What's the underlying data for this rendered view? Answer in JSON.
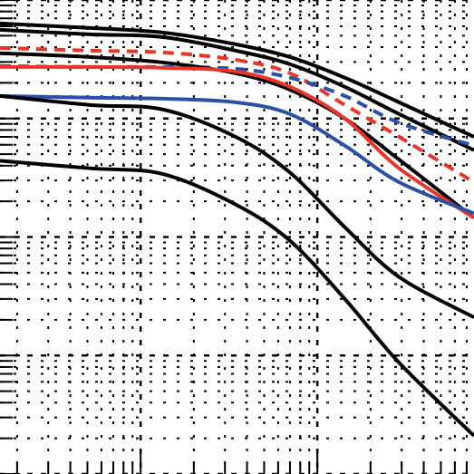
{
  "chart_data": {
    "type": "line",
    "log_x": true,
    "log_y": true,
    "grid": true,
    "xlim": [
      1.6,
      770
    ],
    "ylim": [
      0.001,
      10
    ],
    "xticks": [
      2,
      3,
      4,
      5,
      6,
      7,
      8,
      9,
      10,
      20,
      30,
      40,
      50,
      60,
      70,
      80,
      90,
      100,
      200,
      300,
      400,
      500,
      600,
      700
    ],
    "yticks": [
      0.001,
      0.002,
      0.003,
      0.004,
      0.005,
      0.006,
      0.007,
      0.008,
      0.009,
      0.01,
      0.02,
      0.03,
      0.04,
      0.05,
      0.06,
      0.07,
      0.08,
      0.09,
      0.1,
      0.2,
      0.3,
      0.4,
      0.5,
      0.6,
      0.7,
      0.8,
      0.9,
      1,
      2,
      3,
      4,
      5,
      6,
      7,
      8,
      9,
      10
    ],
    "x": [
      1.6,
      5.2,
      13.4,
      34.5,
      70,
      143,
      290,
      770
    ],
    "series": [
      {
        "color": "#000000",
        "dashed": false,
        "values": [
          6.34,
          5.8,
          5.31,
          4.23,
          3.3,
          2.21,
          1.37,
          0.7
        ]
      },
      {
        "color": "#000000",
        "dashed": false,
        "values": [
          5.6,
          5.13,
          4.86,
          3.74,
          2.87,
          1.85,
          1.09,
          0.54
        ]
      },
      {
        "color": "#e8372a",
        "dashed": true,
        "values": [
          3.94,
          3.74,
          3.61,
          3.13,
          2.41,
          1.3,
          0.7,
          0.29
        ]
      },
      {
        "color": "#2b4fa8",
        "dashed": true,
        "values": [
          2.77,
          2.72,
          2.72,
          2.63,
          2.21,
          1.55,
          0.92,
          0.59
        ]
      },
      {
        "color": "#000000",
        "dashed": false,
        "values": [
          3.55,
          3.3,
          2.97,
          2.41,
          1.75,
          1.0,
          0.45,
          0.145
        ]
      },
      {
        "color": "#e8372a",
        "dashed": false,
        "values": [
          2.72,
          2.72,
          2.68,
          2.49,
          1.85,
          1.0,
          0.38,
          0.145
        ]
      },
      {
        "color": "#2b4fa8",
        "dashed": false,
        "values": [
          1.55,
          1.5,
          1.47,
          1.37,
          1.09,
          0.59,
          0.29,
          0.158
        ]
      },
      {
        "color": "#000000",
        "dashed": false,
        "values": [
          1.55,
          1.3,
          1.19,
          0.7,
          0.35,
          0.121,
          0.046,
          0.021
        ]
      },
      {
        "color": "#000000",
        "dashed": false,
        "values": [
          0.44,
          0.38,
          0.34,
          0.188,
          0.093,
          0.03,
          0.0087,
          0.0021
        ]
      }
    ]
  }
}
